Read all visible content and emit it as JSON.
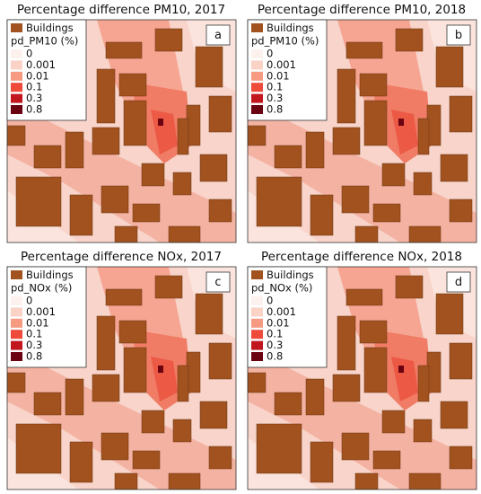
{
  "building_color": "#a1521f",
  "legend_colors": [
    "#fdf1ed",
    "#fad2c6",
    "#f69a82",
    "#ee4b3b",
    "#c2161f",
    "#6a0010"
  ],
  "panels": [
    {
      "title": "Percentage difference PM10, 2017",
      "letter": "a",
      "legend": {
        "buildings": "Buildings",
        "title": "pd_PM10 (%)",
        "labels": [
          0,
          0.001,
          0.01,
          0.1,
          0.3,
          0.8
        ]
      }
    },
    {
      "title": "Percentage difference PM10, 2018",
      "letter": "b",
      "legend": {
        "buildings": "Buildings",
        "title": "pd_PM10 (%)",
        "labels": [
          0,
          0.001,
          0.01,
          0.1,
          0.3,
          0.8
        ]
      }
    },
    {
      "title": "Percentage difference NOx, 2017",
      "letter": "c",
      "legend": {
        "buildings": "Buildings",
        "title": "pd_NOx (%)",
        "labels": [
          0,
          0.001,
          0.01,
          0.1,
          0.3,
          0.8
        ]
      }
    },
    {
      "title": "Percentage difference NOx, 2018",
      "letter": "d",
      "legend": {
        "buildings": "Buildings",
        "title": "pd_NOx (%)",
        "labels": [
          0,
          0.001,
          0.01,
          0.1,
          0.3,
          0.8
        ]
      }
    }
  ]
}
